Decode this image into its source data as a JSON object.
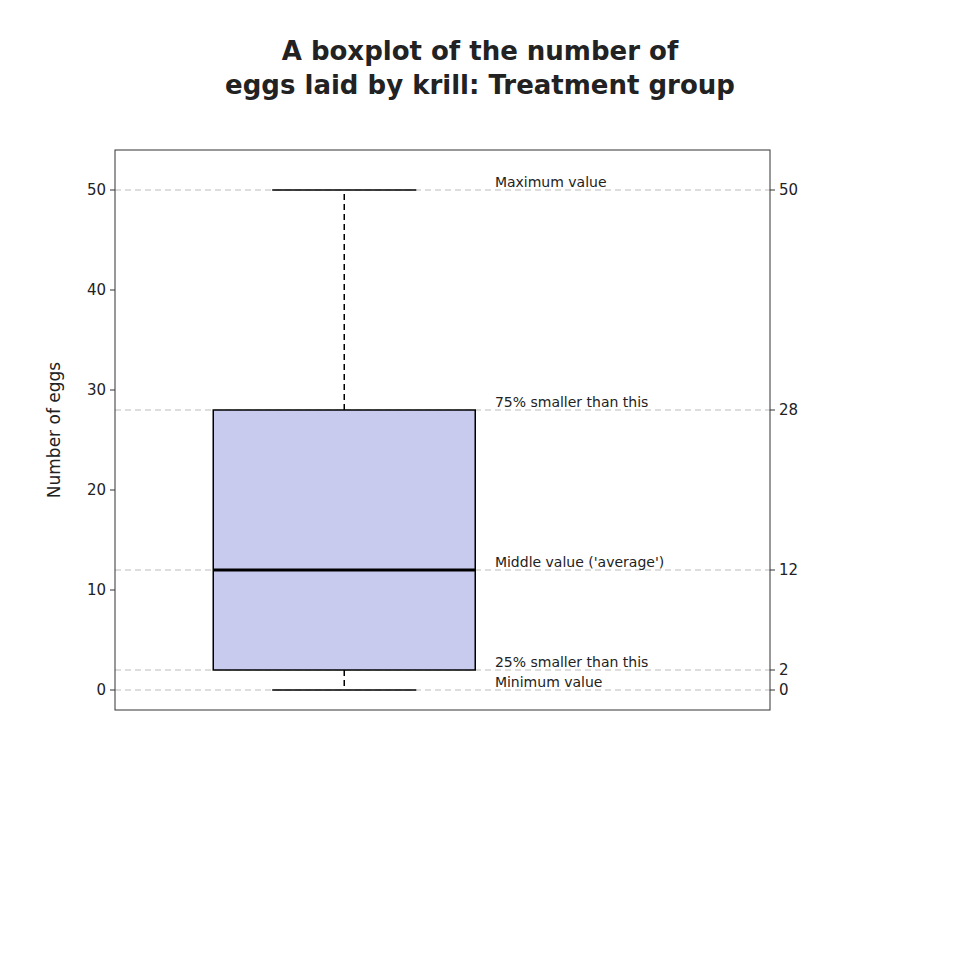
{
  "chart_data": {
    "type": "box",
    "title": "A boxplot of the number of\neggs laid by krill: Treatment group",
    "ylabel": "Number of eggs",
    "q1": 2,
    "median": 12,
    "q3": 28,
    "whisker_low": 0,
    "whisker_high": 50,
    "color": "#c8caee",
    "ylim": [
      -2,
      54
    ],
    "yticks": [
      0,
      10,
      20,
      30,
      40,
      50
    ],
    "y2lim": [
      -2,
      54
    ],
    "y2ticks": [
      0,
      2,
      12,
      28,
      50
    ],
    "hlines": [
      0,
      2,
      12,
      28,
      50
    ],
    "grid": false,
    "annotations": [
      {
        "text": "Maximum value",
        "y": 50
      },
      {
        "text": "75% smaller than this",
        "y": 28
      },
      {
        "text": "Middle value ('average')",
        "y": 12
      },
      {
        "text": "25% smaller than this",
        "y": 2
      },
      {
        "text": "Minimum value",
        "y": 0
      }
    ]
  }
}
